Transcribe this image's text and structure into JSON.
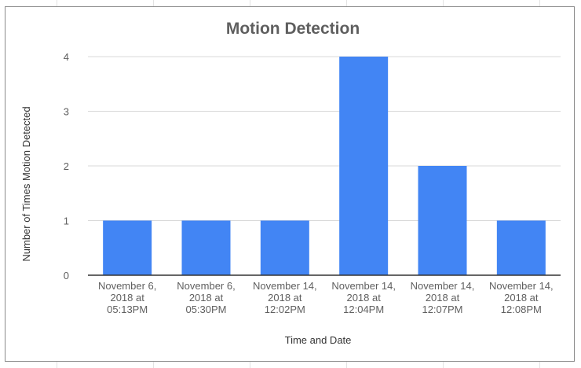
{
  "chart_data": {
    "type": "bar",
    "title": "Motion Detection",
    "xlabel": "Time and Date",
    "ylabel": "Number of Times Motion Detected",
    "categories": [
      [
        "November 6,",
        "2018 at",
        "05:13PM"
      ],
      [
        "November 6,",
        "2018 at",
        "05:30PM"
      ],
      [
        "November 14,",
        "2018 at",
        "12:02PM"
      ],
      [
        "November 14,",
        "2018 at",
        "12:04PM"
      ],
      [
        "November 14,",
        "2018 at",
        "12:07PM"
      ],
      [
        "November 14,",
        "2018 at",
        "12:08PM"
      ]
    ],
    "values": [
      1,
      1,
      1,
      4,
      2,
      1
    ],
    "yticks": [
      "0",
      "1",
      "2",
      "3",
      "4"
    ],
    "ylim": [
      0,
      4
    ],
    "grid": true,
    "bar_color": "#4285f4",
    "grid_color": "#d9d9d9",
    "axis_color": "#333333"
  }
}
